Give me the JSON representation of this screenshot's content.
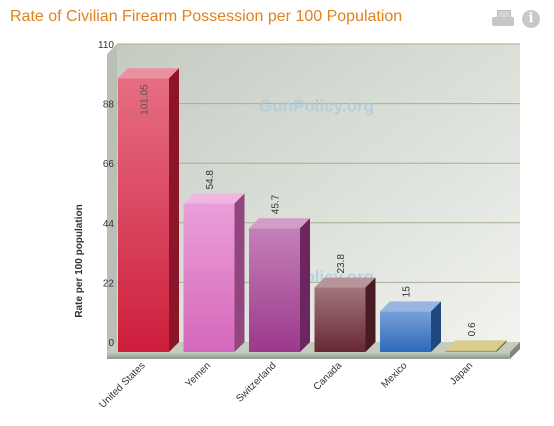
{
  "header": {
    "title": "Rate of Civilian Firearm Possession per 100 Population",
    "icons": [
      "printer-icon",
      "info-icon"
    ],
    "info_glyph": "i"
  },
  "chart_data": {
    "type": "bar",
    "title": "Rate of Civilian Firearm Possession per 100 Population",
    "xlabel": "",
    "ylabel": "Rate per 100 population",
    "categories": [
      "United States",
      "Yemen",
      "Switzerland",
      "Canada",
      "Mexico",
      "Japan"
    ],
    "values": [
      101.05,
      54.8,
      45.7,
      23.8,
      15,
      0.6
    ],
    "value_labels": [
      "101.05",
      "54.8",
      "45.7",
      "23.8",
      "15",
      "0.6"
    ],
    "yticks": [
      "0",
      "22",
      "44",
      "66",
      "88",
      "110"
    ],
    "ylim": [
      0,
      110
    ],
    "grid": true,
    "watermark": "GunPolicy.org",
    "colors": [
      "#d8203f",
      "#e06cc4",
      "#a43b92",
      "#6e2a36",
      "#2e6ec4",
      "#b09820"
    ]
  }
}
